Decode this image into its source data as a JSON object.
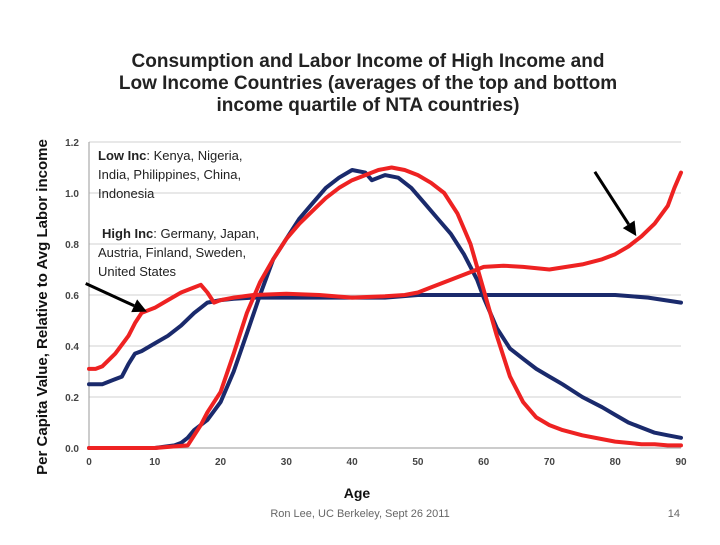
{
  "slide": {
    "footer_credit": "Ron Lee, UC Berkeley, Sept 26 2011",
    "page_number": "14"
  },
  "chart_data": {
    "type": "line",
    "title_lines": [
      "Consumption and Labor Income of High Income and",
      "Low Income Countries (averages of the top and bottom",
      "income quartile of NTA countries)"
    ],
    "xlabel": "Age",
    "ylabel": "Per Capita Value, Relative to Avg Labor income",
    "xlim": [
      0,
      90
    ],
    "ylim": [
      0,
      1.2
    ],
    "x_ticks": [
      "0",
      "10",
      "20",
      "30",
      "40",
      "50",
      "60",
      "70",
      "80",
      "90"
    ],
    "y_ticks": [
      "0.0",
      "0.2",
      "0.4",
      "0.6",
      "0.8",
      "1.0",
      "1.2"
    ],
    "grid": true,
    "legend": {
      "low": {
        "label": "Low Inc",
        "text_lines": [
          ": Kenya, Nigeria,",
          "India, Philippines, China,",
          "Indonesia"
        ]
      },
      "high": {
        "label": "High Inc",
        "text_lines": [
          ": Germany, Japan,",
          "Austria, Finland, Sweden,",
          "United States"
        ]
      }
    },
    "colors": {
      "high_income": "#ee2222",
      "low_income": "#1a2a6c"
    },
    "series": [
      {
        "key": "navy_consumption",
        "color": "#1a2a6c",
        "points": [
          [
            0,
            0.25
          ],
          [
            2,
            0.25
          ],
          [
            4,
            0.27
          ],
          [
            5,
            0.28
          ],
          [
            6,
            0.33
          ],
          [
            7,
            0.37
          ],
          [
            8,
            0.38
          ],
          [
            10,
            0.41
          ],
          [
            12,
            0.44
          ],
          [
            14,
            0.48
          ],
          [
            16,
            0.53
          ],
          [
            17,
            0.55
          ],
          [
            18,
            0.57
          ],
          [
            20,
            0.58
          ],
          [
            22,
            0.585
          ],
          [
            25,
            0.59
          ],
          [
            30,
            0.59
          ],
          [
            35,
            0.59
          ],
          [
            40,
            0.59
          ],
          [
            45,
            0.59
          ],
          [
            50,
            0.6
          ],
          [
            55,
            0.6
          ],
          [
            60,
            0.6
          ],
          [
            62,
            0.6
          ],
          [
            64,
            0.6
          ],
          [
            66,
            0.6
          ],
          [
            70,
            0.6
          ],
          [
            75,
            0.6
          ],
          [
            78,
            0.6
          ],
          [
            80,
            0.6
          ],
          [
            85,
            0.59
          ],
          [
            90,
            0.57
          ]
        ]
      },
      {
        "key": "navy_labor",
        "color": "#1a2a6c",
        "points": [
          [
            0,
            0
          ],
          [
            10,
            0
          ],
          [
            13,
            0.01
          ],
          [
            14,
            0.02
          ],
          [
            15,
            0.04
          ],
          [
            16,
            0.07
          ],
          [
            18,
            0.11
          ],
          [
            20,
            0.18
          ],
          [
            22,
            0.3
          ],
          [
            24,
            0.45
          ],
          [
            26,
            0.6
          ],
          [
            28,
            0.74
          ],
          [
            30,
            0.82
          ],
          [
            32,
            0.9
          ],
          [
            34,
            0.96
          ],
          [
            36,
            1.02
          ],
          [
            38,
            1.06
          ],
          [
            40,
            1.09
          ],
          [
            42,
            1.08
          ],
          [
            43,
            1.05
          ],
          [
            45,
            1.07
          ],
          [
            47,
            1.06
          ],
          [
            49,
            1.02
          ],
          [
            51,
            0.96
          ],
          [
            53,
            0.9
          ],
          [
            55,
            0.84
          ],
          [
            57,
            0.76
          ],
          [
            59,
            0.66
          ],
          [
            60,
            0.59
          ],
          [
            62,
            0.47
          ],
          [
            64,
            0.39
          ],
          [
            66,
            0.35
          ],
          [
            68,
            0.31
          ],
          [
            70,
            0.28
          ],
          [
            72,
            0.25
          ],
          [
            75,
            0.2
          ],
          [
            78,
            0.16
          ],
          [
            80,
            0.13
          ],
          [
            82,
            0.1
          ],
          [
            84,
            0.08
          ],
          [
            86,
            0.06
          ],
          [
            88,
            0.05
          ],
          [
            90,
            0.04
          ]
        ]
      },
      {
        "key": "red_consumption",
        "color": "#ee2222",
        "points": [
          [
            0,
            0.31
          ],
          [
            1,
            0.31
          ],
          [
            2,
            0.32
          ],
          [
            4,
            0.37
          ],
          [
            6,
            0.44
          ],
          [
            7,
            0.49
          ],
          [
            8,
            0.53
          ],
          [
            9,
            0.54
          ],
          [
            10,
            0.55
          ],
          [
            12,
            0.58
          ],
          [
            14,
            0.61
          ],
          [
            16,
            0.63
          ],
          [
            17,
            0.64
          ],
          [
            18,
            0.61
          ],
          [
            19,
            0.57
          ],
          [
            20,
            0.58
          ],
          [
            22,
            0.59
          ],
          [
            25,
            0.6
          ],
          [
            30,
            0.605
          ],
          [
            35,
            0.6
          ],
          [
            40,
            0.59
          ],
          [
            45,
            0.595
          ],
          [
            48,
            0.6
          ],
          [
            50,
            0.61
          ],
          [
            52,
            0.63
          ],
          [
            55,
            0.66
          ],
          [
            58,
            0.69
          ],
          [
            60,
            0.71
          ],
          [
            63,
            0.715
          ],
          [
            66,
            0.71
          ],
          [
            70,
            0.7
          ],
          [
            75,
            0.72
          ],
          [
            78,
            0.74
          ],
          [
            80,
            0.76
          ],
          [
            82,
            0.79
          ],
          [
            84,
            0.83
          ],
          [
            86,
            0.88
          ],
          [
            88,
            0.95
          ],
          [
            89,
            1.02
          ],
          [
            90,
            1.08
          ]
        ]
      },
      {
        "key": "red_labor",
        "color": "#ee2222",
        "points": [
          [
            0,
            0
          ],
          [
            10,
            0
          ],
          [
            15,
            0.01
          ],
          [
            16,
            0.05
          ],
          [
            17,
            0.09
          ],
          [
            18,
            0.14
          ],
          [
            20,
            0.22
          ],
          [
            22,
            0.37
          ],
          [
            24,
            0.53
          ],
          [
            26,
            0.65
          ],
          [
            28,
            0.74
          ],
          [
            30,
            0.82
          ],
          [
            32,
            0.88
          ],
          [
            34,
            0.93
          ],
          [
            36,
            0.98
          ],
          [
            38,
            1.02
          ],
          [
            40,
            1.05
          ],
          [
            42,
            1.07
          ],
          [
            44,
            1.09
          ],
          [
            46,
            1.1
          ],
          [
            48,
            1.09
          ],
          [
            50,
            1.07
          ],
          [
            52,
            1.04
          ],
          [
            54,
            1.0
          ],
          [
            56,
            0.92
          ],
          [
            58,
            0.8
          ],
          [
            60,
            0.62
          ],
          [
            62,
            0.44
          ],
          [
            64,
            0.28
          ],
          [
            66,
            0.18
          ],
          [
            68,
            0.12
          ],
          [
            70,
            0.09
          ],
          [
            72,
            0.07
          ],
          [
            75,
            0.05
          ],
          [
            78,
            0.035
          ],
          [
            80,
            0.025
          ],
          [
            82,
            0.02
          ],
          [
            84,
            0.015
          ],
          [
            86,
            0.015
          ],
          [
            88,
            0.01
          ],
          [
            90,
            0.01
          ]
        ]
      }
    ],
    "annotations": [
      {
        "key": "arrow-left",
        "color": "#000000",
        "tail": [
          -0.5,
          0.645
        ],
        "head": [
          8.8,
          0.535
        ]
      },
      {
        "key": "arrow-right",
        "color": "#000000",
        "tail": [
          76.9,
          1.083
        ],
        "head": [
          83.2,
          0.831
        ]
      }
    ]
  }
}
